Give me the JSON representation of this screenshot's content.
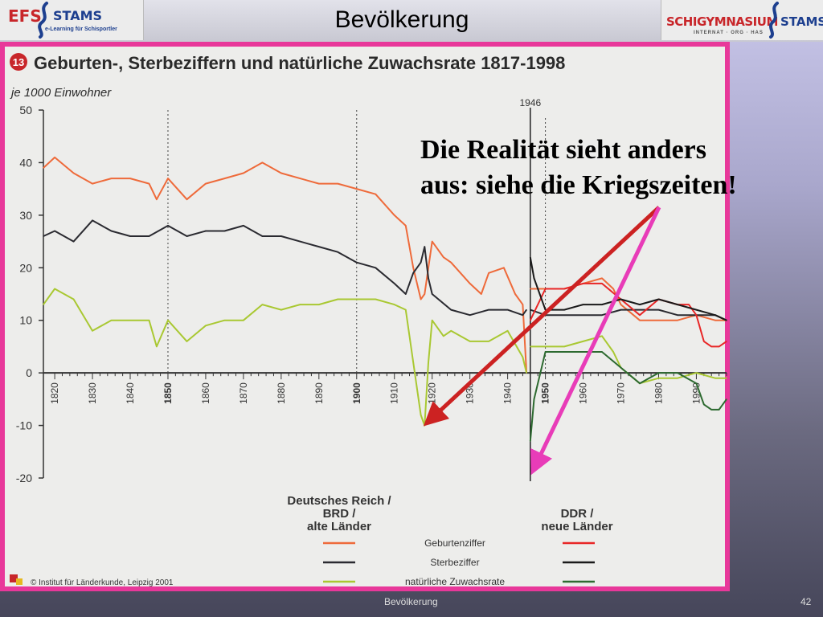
{
  "header": {
    "title": "Bevölkerung",
    "logo_left": {
      "name1": "EFS",
      "name2": "STAMS",
      "subtitle": "e-Learning für Schisportler"
    },
    "logo_right": {
      "name1": "SCHIGYMNASIUM",
      "name2": "STAMS",
      "subtitle": "INTERNAT · ORG · HAS"
    }
  },
  "footer": {
    "center": "Bevölkerung",
    "page_number": "42"
  },
  "annotation": {
    "line1": "Die Realität sieht anders",
    "line2": "aus: siehe die Kriegszeiten!"
  },
  "colors": {
    "frame": "#e8389a",
    "arrow_red": "#cc2222",
    "arrow_pink": "#e83cb8",
    "birth_reich": "#ee6a3a",
    "death_reich": "#2a2a30",
    "growth_reich": "#a9c832",
    "birth_ddr": "#e82626",
    "death_ddr": "#1a1a1a",
    "growth_ddr": "#2d6a30"
  },
  "chart_data": {
    "type": "line",
    "figure_number": "13",
    "title": "Geburten-, Sterbeziffern und natürliche Zuwachsrate 1817-1998",
    "ylabel": "je 1000 Einwohner",
    "ylim": [
      -20,
      50
    ],
    "xlim": [
      1817,
      1998
    ],
    "yticks": [
      50,
      40,
      30,
      20,
      10,
      0,
      -10,
      -20
    ],
    "xticks": [
      "1820",
      "1830",
      "1840",
      "1850",
      "1860",
      "1870",
      "1880",
      "1890",
      "1900",
      "1910",
      "1920",
      "1930",
      "1940",
      "1950",
      "1960",
      "1970",
      "1980",
      "1990"
    ],
    "marker_label": "1946",
    "source": "© Institut für Länderkunde, Leipzig 2001",
    "legend": {
      "group1": [
        "Deutsches Reich /",
        "BRD /",
        "alte Länder"
      ],
      "group2": [
        "DDR /",
        "neue Länder"
      ],
      "items": [
        "Geburtenziffer",
        "Sterbeziffer",
        "natürliche Zuwachsrate"
      ]
    },
    "series": [
      {
        "name": "Geburtenziffer",
        "group": "Deutsches Reich / BRD / alte Länder",
        "x": [
          1817,
          1820,
          1825,
          1830,
          1835,
          1840,
          1845,
          1847,
          1850,
          1855,
          1860,
          1865,
          1870,
          1875,
          1880,
          1885,
          1890,
          1895,
          1900,
          1905,
          1910,
          1913,
          1915,
          1917,
          1918,
          1919,
          1920,
          1923,
          1925,
          1930,
          1933,
          1935,
          1939,
          1942,
          1944,
          1945
        ],
        "y": [
          39,
          41,
          38,
          36,
          37,
          37,
          36,
          33,
          37,
          33,
          36,
          37,
          38,
          40,
          38,
          37,
          36,
          36,
          35,
          34,
          30,
          28,
          20,
          14,
          15,
          20,
          25,
          22,
          21,
          17,
          15,
          19,
          20,
          15,
          13,
          0
        ]
      },
      {
        "name": "Geburtenziffer",
        "group": "Deutsches Reich / BRD / alte Länder",
        "x": [
          1946,
          1950,
          1955,
          1960,
          1965,
          1968,
          1970,
          1975,
          1980,
          1985,
          1990,
          1995,
          1998
        ],
        "y": [
          16,
          16,
          16,
          17,
          18,
          16,
          13,
          10,
          10,
          10,
          11,
          10,
          10
        ]
      },
      {
        "name": "Sterbeziffer",
        "group": "Deutsches Reich / BRD / alte Länder",
        "x": [
          1817,
          1820,
          1825,
          1830,
          1835,
          1840,
          1845,
          1850,
          1855,
          1860,
          1865,
          1870,
          1875,
          1880,
          1885,
          1890,
          1895,
          1900,
          1905,
          1910,
          1913,
          1915,
          1917,
          1918,
          1919,
          1920,
          1925,
          1930,
          1935,
          1940,
          1944,
          1945
        ],
        "y": [
          26,
          27,
          25,
          29,
          27,
          26,
          26,
          28,
          26,
          27,
          27,
          28,
          26,
          26,
          25,
          24,
          23,
          21,
          20,
          17,
          15,
          19,
          21,
          24,
          18,
          15,
          12,
          11,
          12,
          12,
          11,
          12
        ]
      },
      {
        "name": "Sterbeziffer",
        "group": "Deutsches Reich / BRD / alte Länder",
        "x": [
          1946,
          1950,
          1955,
          1960,
          1965,
          1970,
          1975,
          1980,
          1985,
          1990,
          1995,
          1998
        ],
        "y": [
          12,
          11,
          11,
          11,
          11,
          12,
          12,
          12,
          11,
          11,
          11,
          10
        ]
      },
      {
        "name": "natürliche Zuwachsrate",
        "group": "Deutsches Reich / BRD / alte Länder",
        "x": [
          1817,
          1820,
          1825,
          1830,
          1835,
          1840,
          1845,
          1847,
          1850,
          1855,
          1860,
          1865,
          1870,
          1875,
          1880,
          1885,
          1890,
          1895,
          1900,
          1905,
          1910,
          1913,
          1915,
          1917,
          1918,
          1919,
          1920,
          1923,
          1925,
          1930,
          1935,
          1940,
          1944,
          1945
        ],
        "y": [
          13,
          16,
          14,
          8,
          10,
          10,
          10,
          5,
          10,
          6,
          9,
          10,
          10,
          13,
          12,
          13,
          13,
          14,
          14,
          14,
          13,
          12,
          2,
          -8,
          -10,
          2,
          10,
          7,
          8,
          6,
          6,
          8,
          3,
          0
        ]
      },
      {
        "name": "natürliche Zuwachsrate",
        "group": "Deutsches Reich / BRD / alte Länder",
        "x": [
          1946,
          1950,
          1955,
          1960,
          1965,
          1968,
          1970,
          1975,
          1980,
          1985,
          1990,
          1995,
          1998
        ],
        "y": [
          5,
          5,
          5,
          6,
          7,
          4,
          1,
          -2,
          -1,
          -1,
          0,
          -1,
          -1
        ]
      },
      {
        "name": "Geburtenziffer",
        "group": "DDR / neue Länder",
        "x": [
          1946,
          1950,
          1955,
          1960,
          1965,
          1970,
          1975,
          1980,
          1985,
          1988,
          1990,
          1992,
          1994,
          1996,
          1998
        ],
        "y": [
          10,
          16,
          16,
          17,
          17,
          14,
          11,
          14,
          13,
          13,
          11,
          6,
          5,
          5,
          6
        ]
      },
      {
        "name": "Sterbeziffer",
        "group": "DDR / neue Länder",
        "x": [
          1946,
          1947,
          1950,
          1955,
          1960,
          1965,
          1970,
          1975,
          1980,
          1985,
          1990,
          1995,
          1998
        ],
        "y": [
          22,
          18,
          12,
          12,
          13,
          13,
          14,
          13,
          14,
          13,
          12,
          11,
          10
        ]
      },
      {
        "name": "natürliche Zuwachsrate",
        "group": "DDR / neue Länder",
        "x": [
          1946,
          1947,
          1950,
          1955,
          1960,
          1965,
          1970,
          1975,
          1980,
          1985,
          1990,
          1992,
          1994,
          1996,
          1998
        ],
        "y": [
          -13,
          -5,
          4,
          4,
          4,
          4,
          1,
          -2,
          0,
          0,
          -2,
          -6,
          -7,
          -7,
          -5
        ]
      }
    ]
  }
}
